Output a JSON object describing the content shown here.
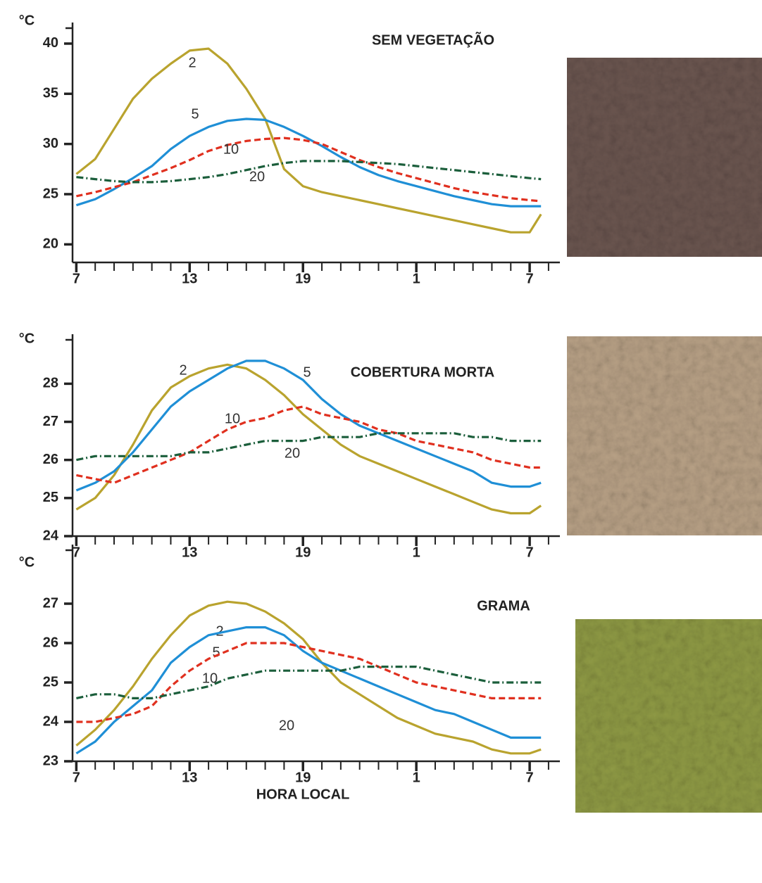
{
  "chart_data": [
    {
      "type": "line",
      "title": "SEM VEGETAÇÃO",
      "ylabel": "°C",
      "x": [
        7,
        8,
        9,
        10,
        11,
        12,
        13,
        14,
        15,
        16,
        17,
        18,
        19,
        20,
        21,
        22,
        23,
        24,
        25,
        26,
        27,
        28,
        29,
        30,
        31,
        31.6
      ],
      "series": [
        {
          "name": "2",
          "color": "#b9a32e",
          "dash": "solid",
          "values": [
            27,
            28.5,
            31.5,
            34.5,
            36.5,
            38,
            39.3,
            39.5,
            38,
            35.5,
            32.5,
            27.5,
            25.8,
            25.2,
            24.8,
            24.4,
            24,
            23.6,
            23.2,
            22.8,
            22.4,
            22,
            21.6,
            21.2,
            21.2,
            23
          ]
        },
        {
          "name": "5",
          "color": "#1f8fd6",
          "dash": "solid",
          "values": [
            23.9,
            24.5,
            25.5,
            26.6,
            27.8,
            29.5,
            30.8,
            31.7,
            32.3,
            32.5,
            32.4,
            31.7,
            30.8,
            29.8,
            28.7,
            27.7,
            26.9,
            26.3,
            25.8,
            25.3,
            24.8,
            24.4,
            24,
            23.8,
            23.8,
            23.8
          ]
        },
        {
          "name": "10",
          "color": "#e0301f",
          "dash": "dashed",
          "values": [
            24.8,
            25.2,
            25.7,
            26.2,
            26.9,
            27.6,
            28.4,
            29.3,
            29.9,
            30.3,
            30.5,
            30.6,
            30.4,
            30,
            29.2,
            28.4,
            27.7,
            27.1,
            26.6,
            26.1,
            25.6,
            25.2,
            24.9,
            24.6,
            24.4,
            24.3
          ]
        },
        {
          "name": "20",
          "color": "#1b5e3b",
          "dash": "dashdot",
          "values": [
            26.7,
            26.5,
            26.3,
            26.2,
            26.2,
            26.3,
            26.5,
            26.7,
            27,
            27.4,
            27.8,
            28.1,
            28.3,
            28.3,
            28.3,
            28.2,
            28.1,
            28,
            27.8,
            27.6,
            27.4,
            27.2,
            27,
            26.8,
            26.6,
            26.5
          ]
        }
      ],
      "xlim": [
        6.8,
        32.6
      ],
      "ylim": [
        18.2,
        42.1
      ],
      "xticks": [
        7,
        13,
        19,
        {
          "value": 25,
          "label": "1"
        },
        {
          "value": 31,
          "label": "7"
        }
      ],
      "xminorticks": [
        8,
        9,
        10,
        11,
        12,
        14,
        15,
        16,
        17,
        18,
        20,
        21,
        22,
        23,
        24,
        26,
        27,
        28,
        29,
        30,
        32
      ],
      "yticks": [
        20,
        25,
        30,
        35,
        40
      ]
    },
    {
      "type": "line",
      "title": "COBERTURA MORTA",
      "ylabel": "°C",
      "x": [
        7,
        8,
        9,
        10,
        11,
        12,
        13,
        14,
        15,
        16,
        17,
        18,
        19,
        20,
        21,
        22,
        23,
        24,
        25,
        26,
        27,
        28,
        29,
        30,
        31,
        31.6
      ],
      "series": [
        {
          "name": "2",
          "color": "#b9a32e",
          "dash": "solid",
          "values": [
            24.7,
            25,
            25.6,
            26.4,
            27.3,
            27.9,
            28.2,
            28.4,
            28.5,
            28.4,
            28.1,
            27.7,
            27.2,
            26.8,
            26.4,
            26.1,
            25.9,
            25.7,
            25.5,
            25.3,
            25.1,
            24.9,
            24.7,
            24.6,
            24.6,
            24.8
          ]
        },
        {
          "name": "5",
          "color": "#1f8fd6",
          "dash": "solid",
          "values": [
            25.2,
            25.4,
            25.7,
            26.2,
            26.8,
            27.4,
            27.8,
            28.1,
            28.4,
            28.6,
            28.6,
            28.4,
            28.1,
            27.6,
            27.2,
            26.9,
            26.7,
            26.5,
            26.3,
            26.1,
            25.9,
            25.7,
            25.4,
            25.3,
            25.3,
            25.4
          ]
        },
        {
          "name": "10",
          "color": "#e0301f",
          "dash": "dashed",
          "values": [
            25.6,
            25.5,
            25.4,
            25.6,
            25.8,
            26,
            26.2,
            26.5,
            26.8,
            27,
            27.1,
            27.3,
            27.4,
            27.2,
            27.1,
            27,
            26.8,
            26.7,
            26.5,
            26.4,
            26.3,
            26.2,
            26,
            25.9,
            25.8,
            25.8
          ]
        },
        {
          "name": "20",
          "color": "#1b5e3b",
          "dash": "dashdot",
          "values": [
            26,
            26.1,
            26.1,
            26.1,
            26.1,
            26.1,
            26.2,
            26.2,
            26.3,
            26.4,
            26.5,
            26.5,
            26.5,
            26.6,
            26.6,
            26.6,
            26.7,
            26.7,
            26.7,
            26.7,
            26.7,
            26.6,
            26.6,
            26.5,
            26.5,
            26.5
          ]
        }
      ],
      "xlim": [
        6.8,
        32.6
      ],
      "ylim": [
        24,
        29.3
      ],
      "xticks": [
        7,
        13,
        19,
        {
          "value": 25,
          "label": "1"
        },
        {
          "value": 31,
          "label": "7"
        }
      ],
      "xminorticks": [
        8,
        9,
        10,
        11,
        12,
        14,
        15,
        16,
        17,
        18,
        20,
        21,
        22,
        23,
        24,
        26,
        27,
        28,
        29,
        30,
        32
      ],
      "yticks": [
        24,
        25,
        26,
        27,
        28
      ]
    },
    {
      "type": "line",
      "title": "GRAMA",
      "ylabel": "°C",
      "xlabel": "HORA LOCAL",
      "x": [
        7,
        8,
        9,
        10,
        11,
        12,
        13,
        14,
        15,
        16,
        17,
        18,
        19,
        20,
        21,
        22,
        23,
        24,
        25,
        26,
        27,
        28,
        29,
        30,
        31,
        31.6
      ],
      "series": [
        {
          "name": "2",
          "color": "#b9a32e",
          "dash": "solid",
          "values": [
            23.4,
            23.8,
            24.3,
            24.9,
            25.6,
            26.2,
            26.7,
            26.95,
            27.05,
            27,
            26.8,
            26.5,
            26.1,
            25.5,
            25,
            24.7,
            24.4,
            24.1,
            23.9,
            23.7,
            23.6,
            23.5,
            23.3,
            23.2,
            23.2,
            23.3
          ]
        },
        {
          "name": "5",
          "color": "#1f8fd6",
          "dash": "solid",
          "values": [
            23.2,
            23.5,
            24,
            24.4,
            24.8,
            25.5,
            25.9,
            26.2,
            26.3,
            26.4,
            26.4,
            26.2,
            25.8,
            25.5,
            25.3,
            25.1,
            24.9,
            24.7,
            24.5,
            24.3,
            24.2,
            24,
            23.8,
            23.6,
            23.6,
            23.6
          ]
        },
        {
          "name": "10",
          "color": "#e0301f",
          "dash": "dashed",
          "values": [
            24,
            24,
            24.1,
            24.2,
            24.4,
            24.9,
            25.3,
            25.6,
            25.8,
            26,
            26,
            26,
            25.9,
            25.8,
            25.7,
            25.6,
            25.4,
            25.2,
            25,
            24.9,
            24.8,
            24.7,
            24.6,
            24.6,
            24.6,
            24.6
          ]
        },
        {
          "name": "20",
          "color": "#1b5e3b",
          "dash": "dashdot",
          "values": [
            24.6,
            24.7,
            24.7,
            24.6,
            24.6,
            24.7,
            24.8,
            24.9,
            25.1,
            25.2,
            25.3,
            25.3,
            25.3,
            25.3,
            25.3,
            25.4,
            25.4,
            25.4,
            25.4,
            25.3,
            25.2,
            25.1,
            25,
            25,
            25,
            25
          ]
        }
      ],
      "xlim": [
        6.8,
        32.6
      ],
      "ylim": [
        23,
        28.5
      ],
      "xticks": [
        7,
        13,
        19,
        {
          "value": 25,
          "label": "1"
        },
        {
          "value": 31,
          "label": "7"
        }
      ],
      "xminorticks": [
        8,
        9,
        10,
        11,
        12,
        14,
        15,
        16,
        17,
        18,
        20,
        21,
        22,
        23,
        24,
        26,
        27,
        28,
        29,
        30,
        32
      ],
      "yticks": [
        23,
        24,
        25,
        26,
        27
      ]
    }
  ]
}
